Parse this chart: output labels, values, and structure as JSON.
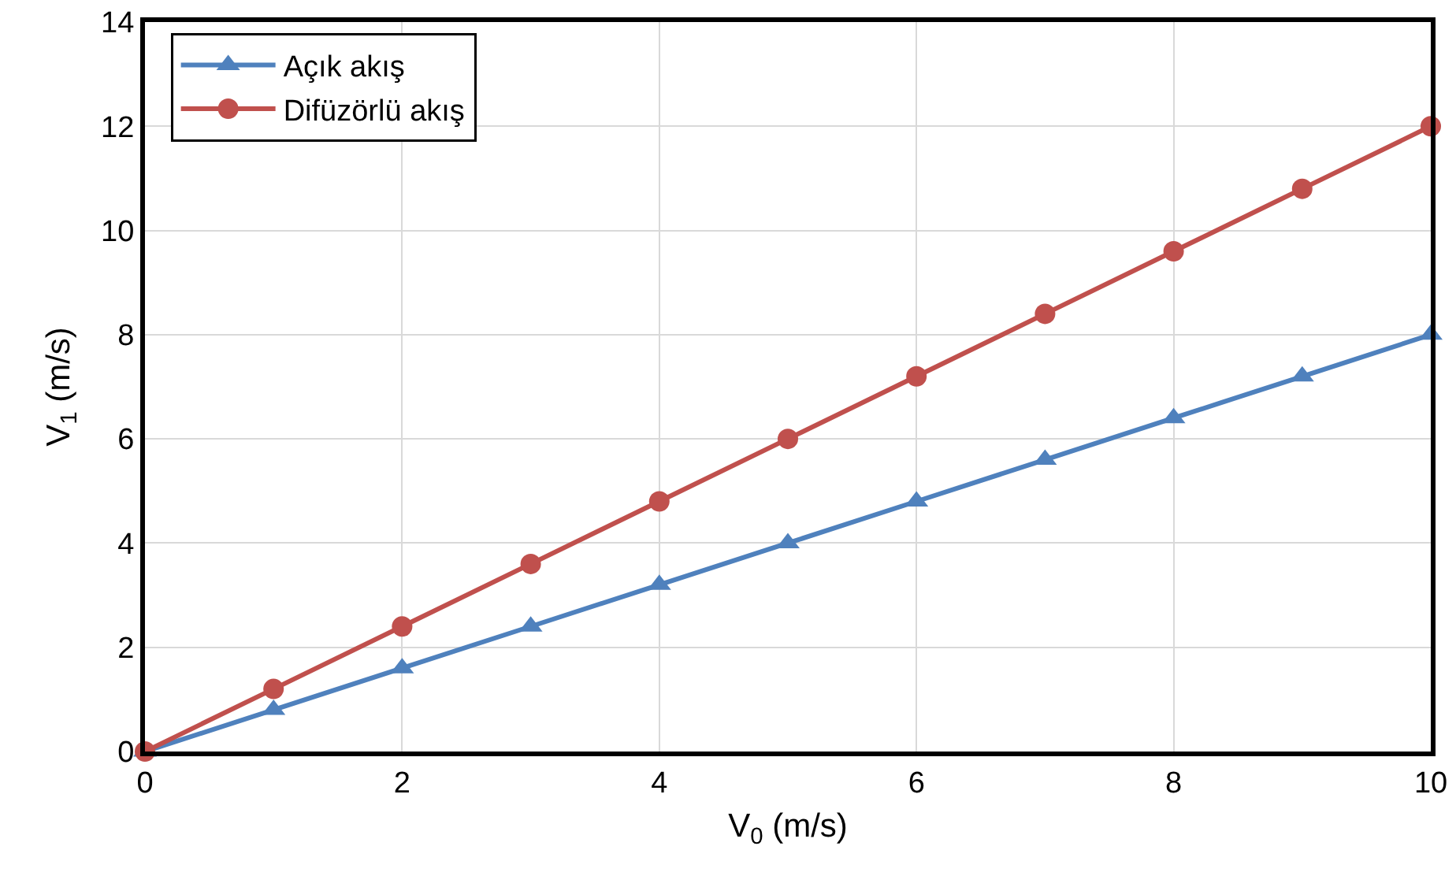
{
  "chart_data": {
    "type": "line",
    "xlabel": "V$_{0}$ (m/s)",
    "ylabel": "V$_{1}$ (m/s)",
    "x": [
      0,
      1,
      2,
      3,
      4,
      5,
      6,
      7,
      8,
      9,
      10
    ],
    "series": [
      {
        "name": "Açık akış",
        "color": "#4f81bd",
        "marker": "triangle",
        "values": [
          0,
          0.8,
          1.6,
          2.4,
          3.2,
          4,
          4.8,
          5.6,
          6.4,
          7.2,
          8
        ]
      },
      {
        "name": "Difüzörlü akış",
        "color": "#c0504d",
        "marker": "circle",
        "values": [
          0,
          1.2,
          2.4,
          3.6,
          4.8,
          6,
          7.2,
          8.4,
          9.6,
          10.8,
          12
        ]
      }
    ],
    "xlim": [
      0,
      10
    ],
    "xticks": [
      0,
      2,
      4,
      6,
      8,
      10
    ],
    "ylim": [
      0,
      14
    ],
    "yticks": [
      0,
      2,
      4,
      6,
      8,
      10,
      12,
      14
    ],
    "grid": true,
    "legend": "top left",
    "line_style": "solid"
  }
}
